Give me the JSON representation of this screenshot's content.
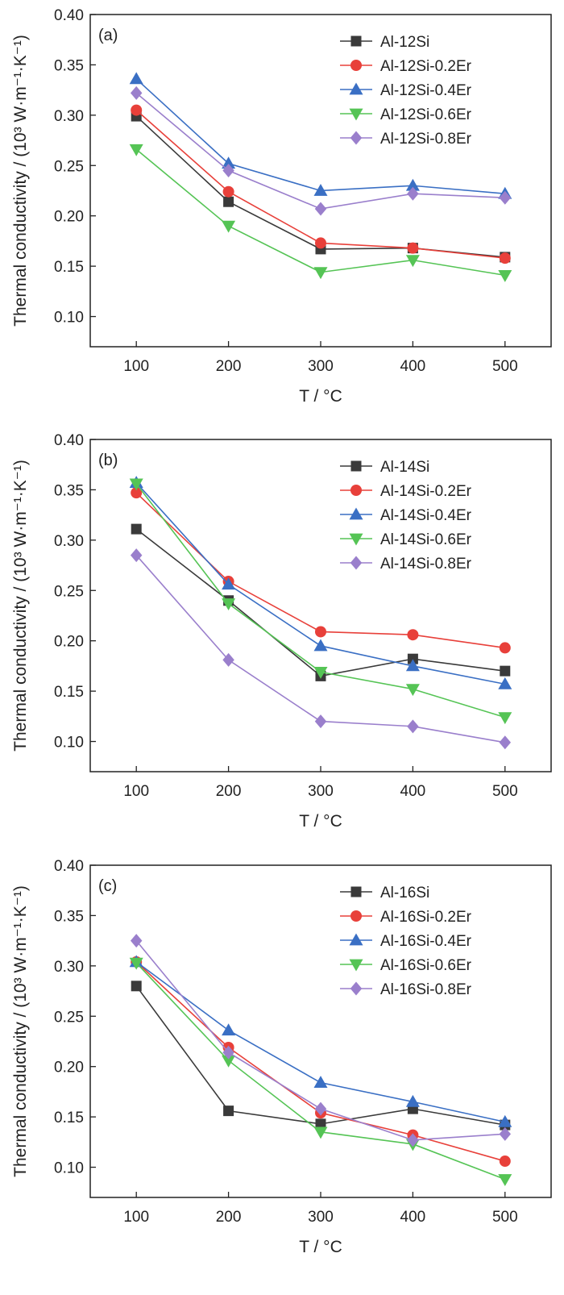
{
  "chart_data": [
    {
      "type": "line",
      "panel_label": "(a)",
      "xlabel": "T / °C",
      "ylabel": "Thermal conductivity / (10³ W·m⁻¹·K⁻¹)",
      "x": [
        100,
        200,
        300,
        400,
        500
      ],
      "xlim": [
        50,
        550
      ],
      "ylim": [
        0.07,
        0.4
      ],
      "xticks": [
        100,
        200,
        300,
        400,
        500
      ],
      "yticks": [
        0.1,
        0.15,
        0.2,
        0.25,
        0.3,
        0.35,
        0.4
      ],
      "legend_position": "top-right",
      "grid": false,
      "series": [
        {
          "name": "Al-12Si",
          "color": "#3a3a3a",
          "marker": "square",
          "values": [
            0.299,
            0.214,
            0.167,
            0.168,
            0.159
          ]
        },
        {
          "name": "Al-12Si-0.2Er",
          "color": "#e8403a",
          "marker": "circle",
          "values": [
            0.305,
            0.224,
            0.173,
            0.168,
            0.158
          ]
        },
        {
          "name": "Al-12Si-0.4Er",
          "color": "#3a6fc4",
          "marker": "triangle-up",
          "values": [
            0.336,
            0.252,
            0.225,
            0.23,
            0.222
          ]
        },
        {
          "name": "Al-12Si-0.6Er",
          "color": "#55c455",
          "marker": "triangle-down",
          "values": [
            0.266,
            0.19,
            0.144,
            0.156,
            0.141
          ]
        },
        {
          "name": "Al-12Si-0.8Er",
          "color": "#9a7fcc",
          "marker": "diamond",
          "values": [
            0.322,
            0.245,
            0.207,
            0.222,
            0.218
          ]
        }
      ]
    },
    {
      "type": "line",
      "panel_label": "(b)",
      "xlabel": "T / °C",
      "ylabel": "Thermal conductivity / (10³ W·m⁻¹·K⁻¹)",
      "x": [
        100,
        200,
        300,
        400,
        500
      ],
      "xlim": [
        50,
        550
      ],
      "ylim": [
        0.07,
        0.4
      ],
      "xticks": [
        100,
        200,
        300,
        400,
        500
      ],
      "yticks": [
        0.1,
        0.15,
        0.2,
        0.25,
        0.3,
        0.35,
        0.4
      ],
      "legend_position": "top-right",
      "grid": false,
      "series": [
        {
          "name": "Al-14Si",
          "color": "#3a3a3a",
          "marker": "square",
          "values": [
            0.311,
            0.24,
            0.165,
            0.182,
            0.17
          ]
        },
        {
          "name": "Al-14Si-0.2Er",
          "color": "#e8403a",
          "marker": "circle",
          "values": [
            0.347,
            0.259,
            0.209,
            0.206,
            0.193
          ]
        },
        {
          "name": "Al-14Si-0.4Er",
          "color": "#3a6fc4",
          "marker": "triangle-up",
          "values": [
            0.357,
            0.256,
            0.195,
            0.175,
            0.157
          ]
        },
        {
          "name": "Al-14Si-0.6Er",
          "color": "#55c455",
          "marker": "triangle-down",
          "values": [
            0.356,
            0.237,
            0.169,
            0.152,
            0.124
          ]
        },
        {
          "name": "Al-14Si-0.8Er",
          "color": "#9a7fcc",
          "marker": "diamond",
          "values": [
            0.285,
            0.181,
            0.12,
            0.115,
            0.099
          ]
        }
      ]
    },
    {
      "type": "line",
      "panel_label": "(c)",
      "xlabel": "T / °C",
      "ylabel": "Thermal conductivity / (10³ W·m⁻¹·K⁻¹)",
      "x": [
        100,
        200,
        300,
        400,
        500
      ],
      "xlim": [
        50,
        550
      ],
      "ylim": [
        0.07,
        0.4
      ],
      "xticks": [
        100,
        200,
        300,
        400,
        500
      ],
      "yticks": [
        0.1,
        0.15,
        0.2,
        0.25,
        0.3,
        0.35,
        0.4
      ],
      "legend_position": "top-right",
      "grid": false,
      "series": [
        {
          "name": "Al-16Si",
          "color": "#3a3a3a",
          "marker": "square",
          "values": [
            0.28,
            0.156,
            0.143,
            0.158,
            0.142
          ]
        },
        {
          "name": "Al-16Si-0.2Er",
          "color": "#e8403a",
          "marker": "circle",
          "values": [
            0.304,
            0.219,
            0.154,
            0.132,
            0.106
          ]
        },
        {
          "name": "Al-16Si-0.4Er",
          "color": "#3a6fc4",
          "marker": "triangle-up",
          "values": [
            0.304,
            0.236,
            0.184,
            0.165,
            0.145
          ]
        },
        {
          "name": "Al-16Si-0.6Er",
          "color": "#55c455",
          "marker": "triangle-down",
          "values": [
            0.303,
            0.206,
            0.135,
            0.123,
            0.088
          ]
        },
        {
          "name": "Al-16Si-0.8Er",
          "color": "#9a7fcc",
          "marker": "diamond",
          "values": [
            0.325,
            0.214,
            0.158,
            0.127,
            0.133
          ]
        }
      ]
    }
  ]
}
